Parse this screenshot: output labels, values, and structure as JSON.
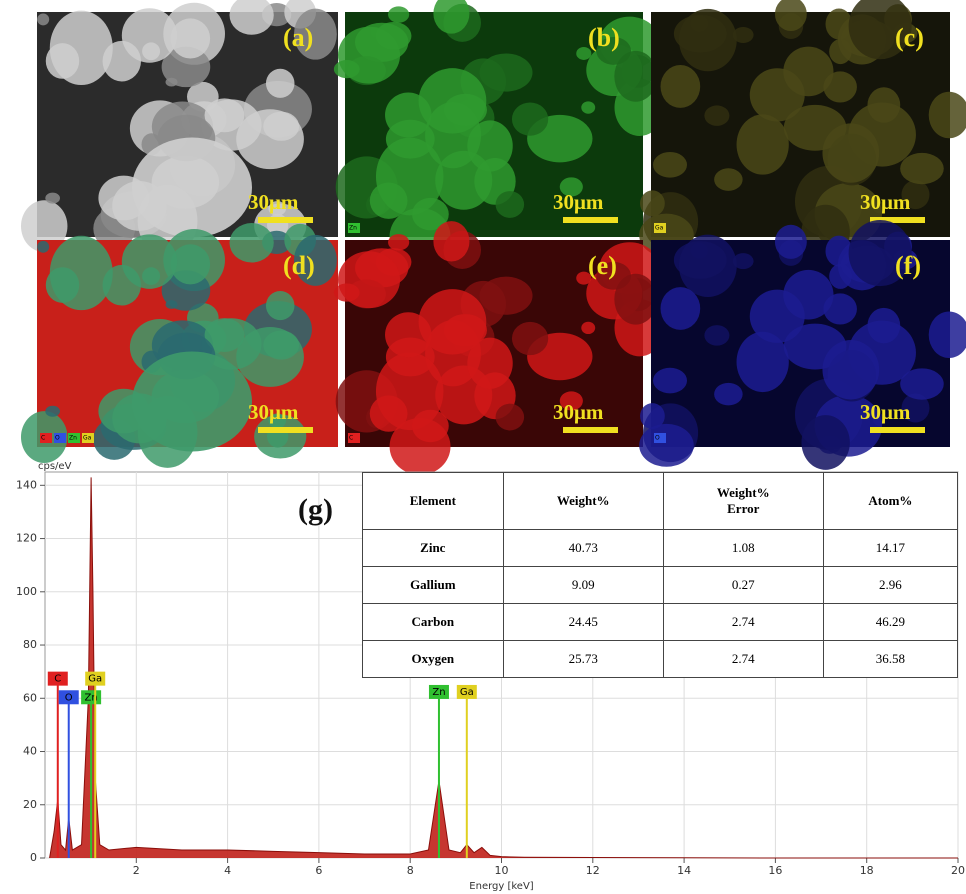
{
  "panels": [
    {
      "label": "(a)",
      "scale_bar": "30μm",
      "elements": []
    },
    {
      "label": "(b)",
      "scale_bar": "30μm",
      "elements": [
        "Zn"
      ]
    },
    {
      "label": "(c)",
      "scale_bar": "30μm",
      "elements": [
        "Ga"
      ]
    },
    {
      "label": "(d)",
      "scale_bar": "30μm",
      "elements": [
        "C",
        "O",
        "Zn",
        "Ga"
      ]
    },
    {
      "label": "(e)",
      "scale_bar": "30μm",
      "elements": [
        "C"
      ]
    },
    {
      "label": "(f)",
      "scale_bar": "30μm",
      "elements": [
        "O"
      ]
    }
  ],
  "table": {
    "header": [
      "Element",
      "Weight%",
      "Weight%\nError",
      "Atom%"
    ],
    "rows": [
      [
        "Zinc",
        "40.73",
        "1.08",
        "14.17"
      ],
      [
        "Gallium",
        "9.09",
        "0.27",
        "2.96"
      ],
      [
        "Carbon",
        "24.45",
        "2.74",
        "46.29"
      ],
      [
        "Oxygen",
        "25.73",
        "2.74",
        "36.58"
      ]
    ]
  },
  "chart_data": {
    "type": "area",
    "annotation": "(g)",
    "y_label": "cps/eV",
    "x_label": "Energy [keV]",
    "xlim": [
      0,
      20
    ],
    "xticks": [
      2,
      4,
      6,
      8,
      10,
      12,
      14,
      16,
      18,
      20
    ],
    "ylim": [
      0,
      145
    ],
    "yticks": [
      0,
      20,
      40,
      60,
      80,
      100,
      120,
      140
    ],
    "grid": true,
    "series": [
      {
        "color": "#c0201a",
        "x": [
          0.1,
          0.2,
          0.28,
          0.35,
          0.45,
          0.52,
          0.6,
          0.8,
          0.95,
          1.01,
          1.05,
          1.1,
          1.2,
          1.4,
          2,
          3,
          4,
          5,
          6,
          7,
          8,
          8.4,
          8.63,
          8.85,
          9.1,
          9.24,
          9.4,
          9.57,
          9.75,
          10,
          10.5,
          12,
          14,
          16,
          18,
          20
        ],
        "values": [
          0,
          10,
          22,
          5,
          3,
          15,
          3,
          5,
          60,
          143,
          100,
          30,
          5,
          3,
          4,
          3,
          3,
          2.5,
          2,
          1.5,
          1.5,
          3,
          29,
          3,
          2,
          5,
          2,
          4,
          1,
          0.5,
          0.3,
          0.2,
          0.1,
          0,
          0,
          0
        ]
      }
    ],
    "markers": [
      {
        "name": "C",
        "x": 0.28,
        "y": 67,
        "color": "#e02020"
      },
      {
        "name": "O",
        "x": 0.52,
        "y": 60,
        "color": "#3050e0"
      },
      {
        "name": "Zn",
        "x": 1.01,
        "y": 60,
        "color": "#30c030"
      },
      {
        "name": "Ga",
        "x": 1.1,
        "y": 67,
        "color": "#e0d020"
      },
      {
        "name": "Zn",
        "x": 8.63,
        "y": 62,
        "color": "#30c030"
      },
      {
        "name": "Ga",
        "x": 9.24,
        "y": 62,
        "color": "#e0d020"
      }
    ]
  }
}
